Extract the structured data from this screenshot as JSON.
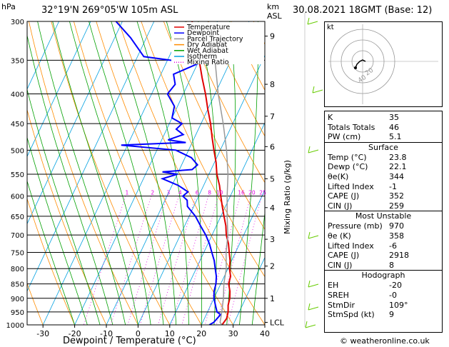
{
  "header": {
    "pressure_unit": "hPa",
    "location": "32°19'N  269°05'W  105m  ASL",
    "height_unit_km": "km",
    "height_unit_asl": "ASL",
    "datetime": "30.08.2021  18GMT  (Base: 12)"
  },
  "legend": [
    {
      "label": "Temperature",
      "color": "#e00000",
      "style": "solid"
    },
    {
      "label": "Dewpoint",
      "color": "#0000ff",
      "style": "solid"
    },
    {
      "label": "Parcel Trajectory",
      "color": "#999999",
      "style": "solid"
    },
    {
      "label": "Dry Adiabat",
      "color": "#ff8c00",
      "style": "solid"
    },
    {
      "label": "Wet Adiabat",
      "color": "#00a000",
      "style": "solid"
    },
    {
      "label": "Isotherm",
      "color": "#00a0e0",
      "style": "solid"
    },
    {
      "label": "Mixing Ratio",
      "color": "#e000e0",
      "style": "dotted"
    }
  ],
  "chart_data": {
    "type": "line",
    "title": "",
    "xlabel": "Dewpoint / Temperature (°C)",
    "ylabel_right": "Mixing Ratio (g/kg)",
    "x_ticks": [
      "-30",
      "-20",
      "-10",
      "0",
      "10",
      "20",
      "30",
      "40"
    ],
    "xlim": [
      -35,
      40
    ],
    "pressure_ticks": [
      "300",
      "350",
      "400",
      "450",
      "500",
      "550",
      "600",
      "650",
      "700",
      "750",
      "800",
      "850",
      "900",
      "950",
      "1000"
    ],
    "pressure_range_hPa": [
      300,
      1000
    ],
    "km_ticks": [
      {
        "label": "9",
        "p": 318
      },
      {
        "label": "8",
        "p": 385
      },
      {
        "label": "7",
        "p": 437
      },
      {
        "label": "6",
        "p": 493
      },
      {
        "label": "5",
        "p": 560
      },
      {
        "label": "4",
        "p": 628
      },
      {
        "label": "3",
        "p": 712
      },
      {
        "label": "2",
        "p": 792
      },
      {
        "label": "1",
        "p": 900
      },
      {
        "label": "LCL",
        "p": 990
      }
    ],
    "mixing_ratio_labels": [
      "1",
      "2",
      "3",
      "4",
      "6",
      "8",
      "10",
      "16",
      "20",
      "25"
    ],
    "mixing_ratio_values": [
      1,
      2,
      3,
      4,
      6,
      8,
      10,
      16,
      20,
      25
    ],
    "series": [
      {
        "name": "Temperature",
        "color": "#e00000",
        "points": [
          [
            1000,
            26.5
          ],
          [
            975,
            27
          ],
          [
            950,
            26.5
          ],
          [
            925,
            25.5
          ],
          [
            900,
            25
          ],
          [
            875,
            24
          ],
          [
            850,
            22.5
          ],
          [
            825,
            22
          ],
          [
            800,
            20.5
          ],
          [
            775,
            19.5
          ],
          [
            750,
            18
          ],
          [
            725,
            16.5
          ],
          [
            700,
            14.5
          ],
          [
            675,
            13
          ],
          [
            650,
            11
          ],
          [
            625,
            9
          ],
          [
            600,
            7
          ],
          [
            575,
            5
          ],
          [
            550,
            2.5
          ],
          [
            525,
            0.5
          ],
          [
            500,
            -2
          ],
          [
            475,
            -4.5
          ],
          [
            450,
            -7
          ],
          [
            425,
            -10
          ],
          [
            400,
            -13
          ],
          [
            375,
            -16.5
          ],
          [
            350,
            -20
          ],
          [
            325,
            -24
          ],
          [
            300,
            -28
          ]
        ]
      },
      {
        "name": "Dewpoint",
        "color": "#0000ff",
        "points": [
          [
            1000,
            22.5
          ],
          [
            990,
            23.5
          ],
          [
            975,
            24
          ],
          [
            960,
            24.5
          ],
          [
            950,
            23
          ],
          [
            925,
            21.5
          ],
          [
            900,
            20
          ],
          [
            875,
            19
          ],
          [
            850,
            18.5
          ],
          [
            825,
            17.5
          ],
          [
            800,
            16
          ],
          [
            775,
            14.5
          ],
          [
            750,
            12.5
          ],
          [
            725,
            10.5
          ],
          [
            700,
            8
          ],
          [
            675,
            5
          ],
          [
            650,
            2
          ],
          [
            625,
            -2
          ],
          [
            610,
            -3
          ],
          [
            600,
            -5
          ],
          [
            590,
            -4
          ],
          [
            575,
            -8
          ],
          [
            560,
            -14
          ],
          [
            550,
            -10
          ],
          [
            545,
            -15
          ],
          [
            540,
            -6
          ],
          [
            530,
            -5
          ],
          [
            515,
            -8
          ],
          [
            500,
            -14
          ],
          [
            490,
            -32
          ],
          [
            485,
            -12
          ],
          [
            480,
            -18
          ],
          [
            470,
            -14
          ],
          [
            460,
            -17
          ],
          [
            450,
            -16
          ],
          [
            440,
            -20
          ],
          [
            420,
            -21
          ],
          [
            400,
            -25
          ],
          [
            385,
            -24
          ],
          [
            370,
            -26
          ],
          [
            355,
            -20
          ],
          [
            345,
            -38
          ],
          [
            320,
            -45
          ],
          [
            300,
            -52
          ]
        ]
      },
      {
        "name": "Parcel Trajectory",
        "color": "#999999",
        "points": [
          [
            1000,
            26.5
          ],
          [
            990,
            25.5
          ],
          [
            950,
            24.5
          ],
          [
            900,
            23
          ],
          [
            850,
            21
          ],
          [
            800,
            19.5
          ],
          [
            750,
            17
          ],
          [
            700,
            15
          ],
          [
            650,
            12
          ],
          [
            600,
            9
          ],
          [
            550,
            6
          ],
          [
            500,
            2
          ],
          [
            450,
            -3
          ],
          [
            400,
            -9
          ],
          [
            350,
            -15
          ],
          [
            300,
            -23
          ]
        ]
      }
    ]
  },
  "hodograph": {
    "unit_label": "kt",
    "ring_labels": [
      "20",
      "40"
    ]
  },
  "indices": {
    "top": [
      {
        "label": "K",
        "value": "35"
      },
      {
        "label": "Totals Totals",
        "value": "46"
      },
      {
        "label": "PW (cm)",
        "value": "5.1"
      }
    ],
    "surface_title": "Surface",
    "surface": [
      {
        "label": "Temp (°C)",
        "value": "23.8"
      },
      {
        "label": "Dewp (°C)",
        "value": "22.1"
      },
      {
        "label": "θe(K)",
        "value": "344"
      },
      {
        "label": "Lifted Index",
        "value": "-1"
      },
      {
        "label": "CAPE (J)",
        "value": "352"
      },
      {
        "label": "CIN (J)",
        "value": "259"
      }
    ],
    "mu_title": "Most Unstable",
    "mu": [
      {
        "label": "Pressure (mb)",
        "value": "970"
      },
      {
        "label": "θe (K)",
        "value": "358"
      },
      {
        "label": "Lifted Index",
        "value": "-6"
      },
      {
        "label": "CAPE (J)",
        "value": "2918"
      },
      {
        "label": "CIN (J)",
        "value": "8"
      }
    ],
    "hodo_title": "Hodograph",
    "hodo": [
      {
        "label": "EH",
        "value": "-20"
      },
      {
        "label": "SREH",
        "value": "-0"
      },
      {
        "label": "StmDir",
        "value": "109°"
      },
      {
        "label": "StmSpd (kt)",
        "value": "9"
      }
    ]
  },
  "footer": {
    "copyright": "© weatheronline.co.uk"
  }
}
